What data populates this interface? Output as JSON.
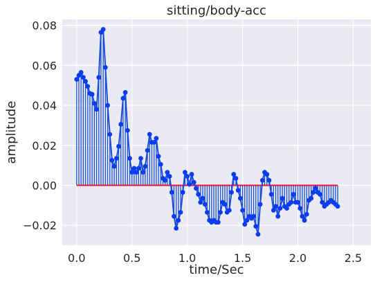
{
  "chart_data": {
    "type": "line",
    "style": "stem plot with connecting line and markers",
    "title": "sitting/body-acc",
    "xlabel": "time/Sec",
    "ylabel": "amplitude",
    "xlim": [
      -0.13,
      2.66
    ],
    "ylim": [
      -0.03,
      0.083
    ],
    "xticks": [
      0.0,
      0.5,
      1.0,
      1.5,
      2.0,
      2.5
    ],
    "xtick_labels": [
      "0.0",
      "0.5",
      "1.0",
      "1.5",
      "2.0",
      "2.5"
    ],
    "yticks": [
      -0.02,
      0.0,
      0.02,
      0.04,
      0.06,
      0.08
    ],
    "ytick_labels": [
      "−0.02",
      "0.00",
      "0.02",
      "0.04",
      "0.06",
      "0.08"
    ],
    "grid": true,
    "colors": {
      "background": "#eaeaf2",
      "grid": "#ffffff",
      "stem": "#1a4fd6",
      "marker": "#0a3cf5",
      "baseline": "#e8123a"
    },
    "x_step": 0.02,
    "series": [
      {
        "values": [
          0.053,
          0.055,
          0.0565,
          0.054,
          0.052,
          0.0495,
          0.046,
          0.0455,
          0.041,
          0.038,
          0.054,
          0.0765,
          0.078,
          0.059,
          0.04,
          0.0255,
          0.0125,
          0.0095,
          0.0135,
          0.0195,
          0.0305,
          0.0435,
          0.0465,
          0.0275,
          0.0135,
          0.0065,
          0.0085,
          0.0065,
          0.0085,
          0.0135,
          0.0065,
          0.0095,
          0.0175,
          0.0255,
          0.0215,
          0.0215,
          0.0235,
          0.0145,
          0.0105,
          0.0035,
          0.0025,
          0.0065,
          0.0045,
          -0.0035,
          -0.0155,
          -0.0215,
          -0.0175,
          -0.0135,
          -0.0035,
          0.0065,
          0.0045,
          0.0005,
          0.0055,
          0.0015,
          -0.0015,
          -0.0045,
          -0.0085,
          -0.0065,
          -0.0095,
          -0.0135,
          -0.0175,
          -0.0185,
          -0.0175,
          -0.0185,
          -0.0185,
          -0.0135,
          -0.0085,
          -0.0095,
          -0.0135,
          -0.0125,
          -0.0035,
          0.0055,
          0.0035,
          -0.0025,
          -0.0065,
          -0.0125,
          -0.0195,
          -0.0175,
          -0.0155,
          -0.0165,
          -0.0155,
          -0.0205,
          -0.0245,
          -0.0095,
          0.0025,
          0.0065,
          0.0055,
          0.0025,
          -0.0045,
          -0.0125,
          -0.0105,
          -0.0155,
          -0.0115,
          -0.0065,
          -0.0105,
          -0.0115,
          -0.0095,
          -0.0085,
          -0.0045,
          -0.0085,
          -0.0085,
          -0.0115,
          -0.0155,
          -0.0175,
          -0.0145,
          -0.0075,
          -0.0065,
          -0.0035,
          -0.0015,
          -0.0035,
          -0.0045,
          -0.0085,
          -0.0105,
          -0.0095,
          -0.0085,
          -0.0075,
          -0.0085,
          -0.0095,
          -0.0105
        ]
      }
    ]
  }
}
